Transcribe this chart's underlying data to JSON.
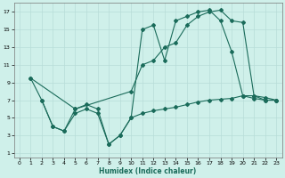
{
  "xlabel": "Humidex (Indice chaleur)",
  "bg_color": "#cff0ea",
  "grid_color": "#b8ddd8",
  "line_color": "#1a6b5a",
  "xlim": [
    -0.5,
    23.5
  ],
  "ylim": [
    0.5,
    18
  ],
  "xticks": [
    0,
    1,
    2,
    3,
    4,
    5,
    6,
    7,
    8,
    9,
    10,
    11,
    12,
    13,
    14,
    15,
    16,
    17,
    18,
    19,
    20,
    21,
    22,
    23
  ],
  "yticks": [
    1,
    3,
    5,
    7,
    9,
    11,
    13,
    15,
    17
  ],
  "line1_x": [
    1,
    2,
    3,
    4,
    5,
    6,
    7,
    8,
    9,
    10,
    11,
    12,
    13,
    14,
    15,
    16,
    17,
    18,
    19,
    20,
    21,
    22,
    23
  ],
  "line1_y": [
    9.5,
    7.0,
    4.0,
    3.5,
    6.0,
    6.5,
    6.0,
    2.0,
    3.0,
    5.0,
    15.0,
    15.5,
    11.5,
    16.0,
    16.5,
    17.0,
    17.2,
    16.0,
    12.5,
    7.5,
    7.2,
    7.0,
    7.0
  ],
  "line2_x": [
    1,
    5,
    10,
    11,
    12,
    13,
    14,
    15,
    16,
    17,
    18,
    19,
    20,
    21,
    22,
    23
  ],
  "line2_y": [
    9.5,
    6.0,
    8.0,
    11.0,
    11.5,
    13.0,
    13.5,
    15.5,
    16.5,
    17.0,
    17.2,
    16.0,
    15.8,
    7.5,
    7.0,
    7.0
  ],
  "line3_x": [
    2,
    3,
    4,
    5,
    6,
    7,
    8,
    9,
    10,
    11,
    12,
    13,
    14,
    15,
    16,
    17,
    18,
    19,
    20,
    21,
    22,
    23
  ],
  "line3_y": [
    7.0,
    4.0,
    3.5,
    5.5,
    6.0,
    5.5,
    2.0,
    3.0,
    5.0,
    5.5,
    5.8,
    6.0,
    6.2,
    6.5,
    6.8,
    7.0,
    7.1,
    7.2,
    7.5,
    7.5,
    7.3,
    7.0
  ]
}
